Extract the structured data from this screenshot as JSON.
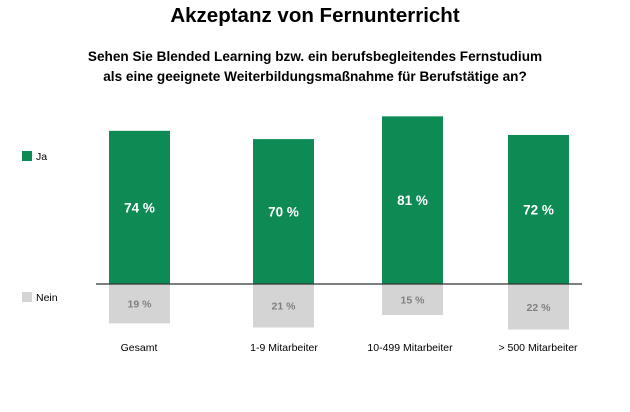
{
  "chart_data": {
    "type": "bar",
    "title": "Akzeptanz von Fernunterricht",
    "subtitle_lines": [
      "Sehen Sie Blended Learning bzw. ein berufsbegleitendes Fernstudium",
      "als eine geeignete Weiterbildungsmaßnahme für Berufstätige an?"
    ],
    "categories": [
      "Gesamt",
      "1-9 Mitarbeiter",
      "10-499 Mitarbeiter",
      "> 500 Mitarbeiter"
    ],
    "series": [
      {
        "name": "Ja",
        "values": [
          74,
          70,
          81,
          72
        ],
        "labels": [
          "74 %",
          "70 %",
          "81 %",
          "72 %"
        ],
        "color": "#0e8a55",
        "direction": "up",
        "label_color": "#ffffff"
      },
      {
        "name": "Nein",
        "values": [
          19,
          21,
          15,
          22
        ],
        "labels": [
          "19 %",
          "21 %",
          "15 %",
          "22 %"
        ],
        "color": "#d4d4d4",
        "direction": "down",
        "label_color": "#808080"
      }
    ],
    "legend_position": "left",
    "grid": false,
    "baseline": true
  }
}
